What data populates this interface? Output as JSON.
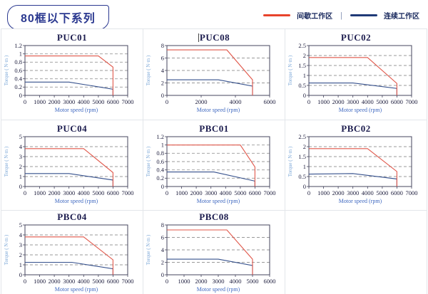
{
  "header": {
    "series_badge": "80框以下系列",
    "legend": {
      "intermittent_label": "间歇工作区",
      "separator": "|",
      "continuous_label": "连续工作区"
    }
  },
  "colors": {
    "badge": "#2b3990",
    "legend_intermittent": "#e8432b",
    "legend_continuous": "#1f3a77",
    "intermittent_line": "#e0574a",
    "continuous_line": "#35508c",
    "grid_line": "#999999",
    "axis_box": "#44445e",
    "tick_text": "#1c1c3c",
    "xlabel_text": "#3f68c0",
    "ylabel_text": "#7ba7d7"
  },
  "chart_data": [
    {
      "type": "line",
      "title": "PUC01",
      "xlabel": "Motor speed (rpm)",
      "ylabel": "Torque ( N·m )",
      "xlim": [
        0,
        7000
      ],
      "ylim": [
        0,
        1.2
      ],
      "xticks": [
        0,
        1000,
        2000,
        3000,
        4000,
        5000,
        6000,
        7000
      ],
      "yticks": [
        0,
        0.2,
        0.4,
        0.6,
        0.8,
        1,
        1.2
      ],
      "grid": "horizontal-dashed",
      "legend_position": "page-top-right",
      "series": [
        {
          "name": "间歇工作区",
          "points": [
            [
              0,
              0.95
            ],
            [
              5000,
              0.95
            ],
            [
              6000,
              0.68
            ],
            [
              6000,
              0
            ]
          ]
        },
        {
          "name": "连续工作区",
          "points": [
            [
              0,
              0.32
            ],
            [
              3000,
              0.32
            ],
            [
              6000,
              0.15
            ],
            [
              6000,
              0
            ]
          ]
        }
      ]
    },
    {
      "type": "line",
      "title": "PUC08",
      "caret": true,
      "xlabel": "Motor speed (rpm)",
      "ylabel": "Torque ( N·m )",
      "xlim": [
        0,
        6000
      ],
      "ylim": [
        0,
        8
      ],
      "xticks": [
        0,
        2000,
        4000,
        6000
      ],
      "yticks": [
        0,
        2,
        4,
        6,
        8
      ],
      "grid": "horizontal-dashed",
      "legend_position": "page-top-right",
      "series": [
        {
          "name": "间歇工作区",
          "points": [
            [
              0,
              7.3
            ],
            [
              3500,
              7.3
            ],
            [
              5000,
              2.5
            ],
            [
              5000,
              0
            ]
          ]
        },
        {
          "name": "连续工作区",
          "points": [
            [
              0,
              2.5
            ],
            [
              3000,
              2.5
            ],
            [
              5000,
              1.5
            ],
            [
              5000,
              0
            ]
          ]
        }
      ]
    },
    {
      "type": "line",
      "title": "PUC02",
      "xlabel": "Motor speed (rpm)",
      "ylabel": "Torque ( N·m )",
      "xlim": [
        0,
        7000
      ],
      "ylim": [
        0,
        2.5
      ],
      "xticks": [
        0,
        1000,
        2000,
        3000,
        4000,
        5000,
        6000,
        7000
      ],
      "yticks": [
        0,
        0.5,
        1,
        1.5,
        2,
        2.5
      ],
      "grid": "horizontal-dashed",
      "legend_position": "page-top-right",
      "series": [
        {
          "name": "间歇工作区",
          "points": [
            [
              0,
              1.9
            ],
            [
              4000,
              1.9
            ],
            [
              6000,
              0.6
            ],
            [
              6000,
              0
            ]
          ]
        },
        {
          "name": "连续工作区",
          "points": [
            [
              0,
              0.62
            ],
            [
              3000,
              0.62
            ],
            [
              6000,
              0.35
            ],
            [
              6000,
              0
            ]
          ]
        }
      ]
    },
    {
      "type": "line",
      "title": "PUC04",
      "xlabel": "Motor speed (rpm)",
      "ylabel": "Torque ( N·m )",
      "xlim": [
        0,
        7000
      ],
      "ylim": [
        0,
        5
      ],
      "xticks": [
        0,
        1000,
        2000,
        3000,
        4000,
        5000,
        6000,
        7000
      ],
      "yticks": [
        0,
        1,
        2,
        3,
        4,
        5
      ],
      "grid": "horizontal-dashed",
      "legend_position": "page-top-right",
      "series": [
        {
          "name": "间歇工作区",
          "points": [
            [
              0,
              3.8
            ],
            [
              4000,
              3.8
            ],
            [
              6000,
              1.4
            ],
            [
              6000,
              0
            ]
          ]
        },
        {
          "name": "连续工作区",
          "points": [
            [
              0,
              1.3
            ],
            [
              3000,
              1.3
            ],
            [
              6000,
              0.65
            ],
            [
              6000,
              0
            ]
          ]
        }
      ]
    },
    {
      "type": "line",
      "title": "PBC01",
      "xlabel": "Motor speed (rpm)",
      "ylabel": "Torque ( N·m )",
      "xlim": [
        0,
        7000
      ],
      "ylim": [
        0,
        1.2
      ],
      "xticks": [
        0,
        1000,
        2000,
        3000,
        4000,
        5000,
        6000,
        7000
      ],
      "yticks": [
        0,
        0.2,
        0.4,
        0.6,
        0.8,
        1,
        1.2
      ],
      "grid": "horizontal-dashed",
      "legend_position": "page-top-right",
      "series": [
        {
          "name": "间歇工作区",
          "points": [
            [
              0,
              1.0
            ],
            [
              5000,
              1.0
            ],
            [
              6000,
              0.47
            ],
            [
              6000,
              0
            ]
          ]
        },
        {
          "name": "连续工作区",
          "points": [
            [
              0,
              0.35
            ],
            [
              3200,
              0.35
            ],
            [
              6000,
              0.13
            ],
            [
              6000,
              0
            ]
          ]
        }
      ]
    },
    {
      "type": "line",
      "title": "PBC02",
      "xlabel": "Motor speed (rpm)",
      "ylabel": "Torque ( N·m )",
      "xlim": [
        0,
        7000
      ],
      "ylim": [
        0,
        2.5
      ],
      "xticks": [
        0,
        1000,
        2000,
        3000,
        4000,
        5000,
        6000,
        7000
      ],
      "yticks": [
        0,
        0.5,
        1,
        1.5,
        2,
        2.5
      ],
      "grid": "horizontal-dashed",
      "legend_position": "page-top-right",
      "series": [
        {
          "name": "间歇工作区",
          "points": [
            [
              0,
              1.9
            ],
            [
              4000,
              1.9
            ],
            [
              6000,
              0.75
            ],
            [
              6000,
              0
            ]
          ]
        },
        {
          "name": "连续工作区",
          "points": [
            [
              0,
              0.62
            ],
            [
              3000,
              0.65
            ],
            [
              6000,
              0.38
            ],
            [
              6000,
              0
            ]
          ]
        }
      ]
    },
    {
      "type": "line",
      "title": "PBC04",
      "xlabel": "Motor speed (rpm)",
      "ylabel": "Torque ( N·m )",
      "xlim": [
        0,
        7000
      ],
      "ylim": [
        0,
        5
      ],
      "xticks": [
        0,
        1000,
        2000,
        3000,
        4000,
        5000,
        6000,
        7000
      ],
      "yticks": [
        0,
        1,
        2,
        3,
        4,
        5
      ],
      "grid": "horizontal-dashed",
      "legend_position": "page-top-right",
      "series": [
        {
          "name": "间歇工作区",
          "points": [
            [
              0,
              3.8
            ],
            [
              4000,
              3.8
            ],
            [
              6000,
              1.5
            ],
            [
              6000,
              0
            ]
          ]
        },
        {
          "name": "连续工作区",
          "points": [
            [
              0,
              1.25
            ],
            [
              3200,
              1.25
            ],
            [
              6000,
              0.6
            ],
            [
              6000,
              0
            ]
          ]
        }
      ]
    },
    {
      "type": "line",
      "title": "PBC08",
      "xlabel": "Motor speed (rpm)",
      "ylabel": "Torque ( N·m )",
      "xlim": [
        0,
        6000
      ],
      "ylim": [
        0,
        8
      ],
      "xticks": [
        0,
        1000,
        2000,
        3000,
        4000,
        5000,
        6000
      ],
      "yticks": [
        0,
        2,
        4,
        6,
        8
      ],
      "grid": "horizontal-dashed",
      "legend_position": "page-top-right",
      "series": [
        {
          "name": "间歇工作区",
          "points": [
            [
              0,
              7.2
            ],
            [
              3500,
              7.2
            ],
            [
              5000,
              2.5
            ],
            [
              5000,
              0
            ]
          ]
        },
        {
          "name": "连续工作区",
          "points": [
            [
              0,
              2.5
            ],
            [
              3000,
              2.5
            ],
            [
              5000,
              1.5
            ],
            [
              5000,
              0
            ]
          ]
        }
      ]
    }
  ]
}
